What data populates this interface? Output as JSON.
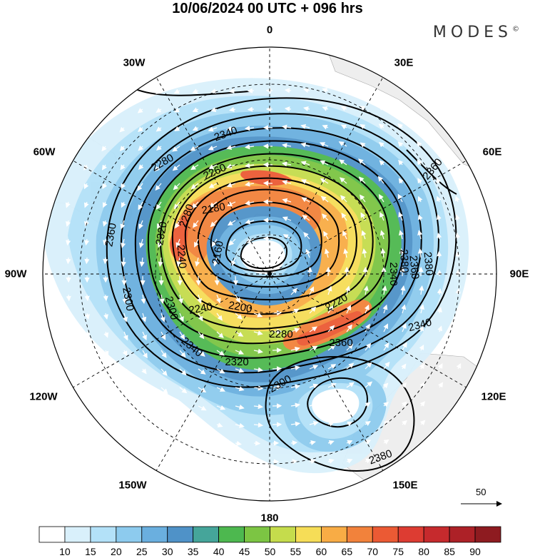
{
  "header": {
    "title": "10/06/2024  00 UTC  + 096 hrs",
    "brand": "MODES",
    "brand_mark": "©"
  },
  "map": {
    "projection": "south-polar-stereographic",
    "longitude_labels": {
      "lon_0": "0",
      "lon_30e": "30E",
      "lon_60e": "60E",
      "lon_90e": "90E",
      "lon_120e": "120E",
      "lon_150e": "150E",
      "lon_180": "180",
      "lon_150w": "150W",
      "lon_120w": "120W",
      "lon_90w": "90W",
      "lon_60w": "60W",
      "lon_30w": "30W"
    },
    "contour_labels": [
      "2340",
      "2260",
      "2180",
      "2160",
      "2240",
      "2280",
      "2320",
      "2360",
      "2360",
      "2300",
      "2300",
      "2340",
      "2200",
      "2240",
      "2220",
      "2280",
      "2360",
      "2320",
      "2340",
      "2380",
      "2300",
      "2340",
      "2360",
      "2280",
      "2380",
      "2380"
    ],
    "colors": {
      "land": "#eeeeee",
      "contour": "#000000",
      "vectors": "#ffffff"
    }
  },
  "vector_reference": {
    "label": "50"
  },
  "colorbar": {
    "ticks": [
      "10",
      "15",
      "20",
      "25",
      "30",
      "35",
      "40",
      "45",
      "50",
      "55",
      "60",
      "65",
      "70",
      "75",
      "80",
      "85",
      "90"
    ],
    "colors": [
      "#ffffff",
      "#d9f0fb",
      "#b3e1f8",
      "#8dcbee",
      "#6aafdf",
      "#4f92c8",
      "#45a59a",
      "#4db84f",
      "#7cc543",
      "#c5dc4c",
      "#f6dd57",
      "#f8ac45",
      "#f2823b",
      "#eb5a34",
      "#dd3c32",
      "#c62a2d",
      "#ad2127",
      "#8e1b20"
    ]
  }
}
